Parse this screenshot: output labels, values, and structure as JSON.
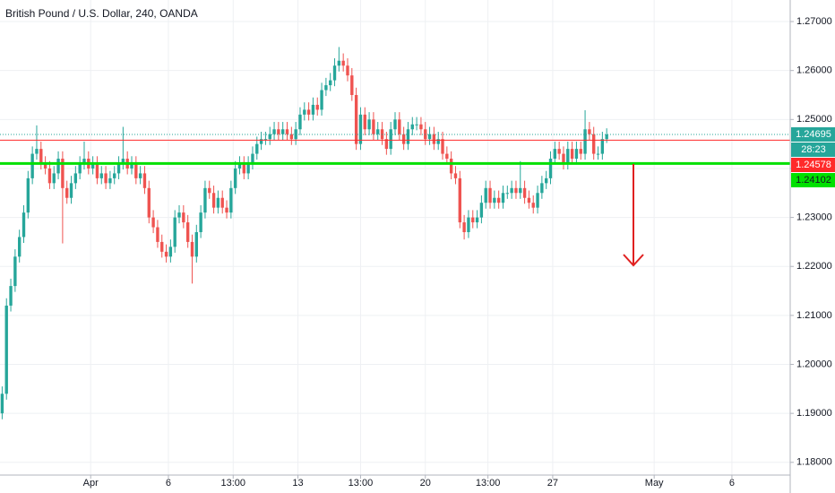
{
  "chart_data": {
    "type": "candlestick",
    "title": "British Pound / U.S. Dollar, 240, OANDA",
    "up_color": "#26a69a",
    "down_color": "#ef5350",
    "open": [
      1.19,
      1.194,
      1.212,
      1.216,
      1.222,
      1.226,
      1.231,
      1.238,
      1.243,
      1.244,
      1.241,
      1.24,
      1.237,
      1.239,
      1.242,
      1.236,
      1.234,
      1.237,
      1.239,
      1.241,
      1.242,
      1.24,
      1.241,
      1.238,
      1.239,
      1.237,
      1.238,
      1.239,
      1.241,
      1.242,
      1.24,
      1.241,
      1.238,
      1.239,
      1.236,
      1.23,
      1.228,
      1.225,
      1.223,
      1.222,
      1.224,
      1.23,
      1.231,
      1.229,
      1.225,
      1.222,
      1.227,
      1.231,
      1.236,
      1.235,
      1.232,
      1.234,
      1.232,
      1.231,
      1.236,
      1.24,
      1.241,
      1.239,
      1.241,
      1.243,
      1.245,
      1.246,
      1.246,
      1.247,
      1.248,
      1.247,
      1.248,
      1.247,
      1.246,
      1.248,
      1.251,
      1.252,
      1.251,
      1.253,
      1.252,
      1.256,
      1.257,
      1.258,
      1.261,
      1.262,
      1.261,
      1.259,
      1.255,
      1.245,
      1.251,
      1.248,
      1.25,
      1.247,
      1.248,
      1.246,
      1.244,
      1.248,
      1.25,
      1.247,
      1.245,
      1.248,
      1.249,
      1.249,
      1.248,
      1.246,
      1.247,
      1.245,
      1.246,
      1.243,
      1.242,
      1.239,
      1.238,
      1.229,
      1.227,
      1.23,
      1.229,
      1.23,
      1.233,
      1.236,
      1.233,
      1.234,
      1.233,
      1.235,
      1.235,
      1.236,
      1.235,
      1.236,
      1.234,
      1.233,
      1.232,
      1.235,
      1.237,
      1.238,
      1.242,
      1.244,
      1.243,
      1.241,
      1.244,
      1.242,
      1.244,
      1.243,
      1.248,
      1.247,
      1.243,
      1.243,
      1.246
    ],
    "high": [
      1.1955,
      1.2135,
      1.2175,
      1.2235,
      1.2275,
      1.2325,
      1.2395,
      1.2445,
      1.2488,
      1.2455,
      1.2425,
      1.2415,
      1.2405,
      1.2435,
      1.2435,
      1.2375,
      1.2385,
      1.2405,
      1.2425,
      1.2455,
      1.2435,
      1.2425,
      1.2425,
      1.2405,
      1.2405,
      1.2395,
      1.2405,
      1.2425,
      1.2485,
      1.2435,
      1.2425,
      1.2425,
      1.2405,
      1.2405,
      1.2375,
      1.2315,
      1.2295,
      1.2265,
      1.2245,
      1.2255,
      1.2315,
      1.2325,
      1.2325,
      1.2305,
      1.2265,
      1.2285,
      1.2325,
      1.2375,
      1.2375,
      1.2365,
      1.2355,
      1.2355,
      1.2335,
      1.2375,
      1.2415,
      1.2425,
      1.2425,
      1.2425,
      1.2445,
      1.2465,
      1.2475,
      1.2475,
      1.2485,
      1.2495,
      1.2495,
      1.2495,
      1.2495,
      1.2485,
      1.2495,
      1.2525,
      1.2535,
      1.2535,
      1.2545,
      1.2545,
      1.2575,
      1.2585,
      1.2595,
      1.2625,
      1.2648,
      1.2635,
      1.2625,
      1.2605,
      1.2565,
      1.2525,
      1.2525,
      1.2515,
      1.2515,
      1.2495,
      1.2495,
      1.2475,
      1.2495,
      1.2515,
      1.2515,
      1.2485,
      1.2495,
      1.2505,
      1.2505,
      1.2505,
      1.2495,
      1.2485,
      1.2485,
      1.2475,
      1.2475,
      1.2445,
      1.2435,
      1.2405,
      1.2395,
      1.2305,
      1.2315,
      1.2315,
      1.2315,
      1.2345,
      1.2375,
      1.2375,
      1.2355,
      1.2355,
      1.2365,
      1.2365,
      1.2375,
      1.2375,
      1.2415,
      1.2375,
      1.2355,
      1.2345,
      1.2365,
      1.2385,
      1.2395,
      1.2435,
      1.2455,
      1.2455,
      1.2445,
      1.2455,
      1.2455,
      1.2455,
      1.2455,
      1.2519,
      1.2495,
      1.2485,
      1.2445,
      1.2475,
      1.2482
    ],
    "low": [
      1.1888,
      1.1928,
      1.2108,
      1.2148,
      1.2208,
      1.2248,
      1.2298,
      1.2368,
      1.2418,
      1.2398,
      1.2388,
      1.2358,
      1.2358,
      1.2378,
      1.2247,
      1.2328,
      1.2328,
      1.2358,
      1.2378,
      1.2398,
      1.2388,
      1.2388,
      1.2368,
      1.2368,
      1.2358,
      1.2358,
      1.2368,
      1.2378,
      1.2398,
      1.2388,
      1.2388,
      1.2368,
      1.2368,
      1.2348,
      1.2288,
      1.2268,
      1.2238,
      1.2218,
      1.2208,
      1.2208,
      1.2228,
      1.2288,
      1.2278,
      1.2238,
      1.2165,
      1.2208,
      1.2258,
      1.2298,
      1.2338,
      1.2308,
      1.2308,
      1.2308,
      1.2298,
      1.2298,
      1.2348,
      1.2388,
      1.2378,
      1.2378,
      1.2398,
      1.2418,
      1.2438,
      1.2448,
      1.2448,
      1.2458,
      1.2458,
      1.2458,
      1.2458,
      1.2448,
      1.2448,
      1.2468,
      1.2498,
      1.2498,
      1.2498,
      1.2508,
      1.2508,
      1.2548,
      1.2558,
      1.2568,
      1.2598,
      1.2598,
      1.2578,
      1.2538,
      1.2438,
      1.2438,
      1.2468,
      1.2468,
      1.2458,
      1.2458,
      1.2448,
      1.2428,
      1.2428,
      1.2468,
      1.2458,
      1.2438,
      1.2438,
      1.2468,
      1.2478,
      1.2468,
      1.2448,
      1.2448,
      1.2438,
      1.2438,
      1.2418,
      1.2408,
      1.2378,
      1.2368,
      1.2278,
      1.2255,
      1.2258,
      1.2278,
      1.2278,
      1.2288,
      1.2318,
      1.2318,
      1.2318,
      1.2318,
      1.2318,
      1.2338,
      1.2338,
      1.2338,
      1.2338,
      1.2328,
      1.2318,
      1.2308,
      1.2308,
      1.2338,
      1.2358,
      1.2368,
      1.2408,
      1.2418,
      1.2398,
      1.2398,
      1.2408,
      1.2408,
      1.2418,
      1.2418,
      1.2458,
      1.2418,
      1.2418,
      1.2418,
      1.2452
    ],
    "close": [
      1.194,
      1.212,
      1.216,
      1.222,
      1.226,
      1.231,
      1.238,
      1.243,
      1.244,
      1.241,
      1.24,
      1.237,
      1.239,
      1.242,
      1.236,
      1.234,
      1.237,
      1.239,
      1.241,
      1.242,
      1.24,
      1.241,
      1.238,
      1.239,
      1.237,
      1.238,
      1.239,
      1.241,
      1.242,
      1.24,
      1.241,
      1.238,
      1.239,
      1.236,
      1.23,
      1.228,
      1.225,
      1.223,
      1.222,
      1.224,
      1.23,
      1.231,
      1.229,
      1.225,
      1.222,
      1.227,
      1.231,
      1.236,
      1.235,
      1.232,
      1.234,
      1.232,
      1.231,
      1.236,
      1.24,
      1.241,
      1.239,
      1.241,
      1.243,
      1.245,
      1.246,
      1.246,
      1.247,
      1.248,
      1.247,
      1.248,
      1.247,
      1.246,
      1.248,
      1.251,
      1.252,
      1.251,
      1.253,
      1.252,
      1.256,
      1.257,
      1.258,
      1.261,
      1.262,
      1.261,
      1.259,
      1.255,
      1.245,
      1.251,
      1.248,
      1.25,
      1.247,
      1.248,
      1.246,
      1.244,
      1.248,
      1.25,
      1.247,
      1.245,
      1.248,
      1.249,
      1.249,
      1.248,
      1.246,
      1.247,
      1.245,
      1.246,
      1.243,
      1.242,
      1.239,
      1.238,
      1.229,
      1.227,
      1.23,
      1.229,
      1.23,
      1.233,
      1.236,
      1.233,
      1.234,
      1.233,
      1.235,
      1.235,
      1.236,
      1.235,
      1.236,
      1.234,
      1.233,
      1.232,
      1.235,
      1.237,
      1.238,
      1.242,
      1.244,
      1.243,
      1.241,
      1.244,
      1.242,
      1.244,
      1.243,
      1.248,
      1.247,
      1.243,
      1.243,
      1.246,
      1.24695
    ],
    "last_color": "#26a69a",
    "countdown": "28:23",
    "hlines": [
      {
        "value": 1.24578,
        "color": "#ff2a2a"
      },
      {
        "value": 1.24102,
        "color": "#00e000"
      }
    ],
    "xlim": [
      -0.5,
      182.5
    ],
    "xticks": [
      {
        "value": 20.5,
        "label": "Apr"
      },
      {
        "value": 38.5,
        "label": "6"
      },
      {
        "value": 53.5,
        "label": "13:00"
      },
      {
        "value": 68.5,
        "label": "13"
      },
      {
        "value": 83,
        "label": "13:00"
      },
      {
        "value": 98,
        "label": "20"
      },
      {
        "value": 112.5,
        "label": "13:00"
      },
      {
        "value": 127.5,
        "label": "27"
      },
      {
        "value": 151,
        "label": "May"
      },
      {
        "value": 169,
        "label": "6"
      }
    ],
    "ylim": [
      1.1774,
      1.2744
    ],
    "yticks": [
      {
        "value": 1.18,
        "label": "1.18000"
      },
      {
        "value": 1.19,
        "label": "1.19000"
      },
      {
        "value": 1.2,
        "label": "1.20000"
      },
      {
        "value": 1.21,
        "label": "1.21000"
      },
      {
        "value": 1.22,
        "label": "1.22000"
      },
      {
        "value": 1.23,
        "label": "1.23000"
      },
      {
        "value": 1.24,
        "label": "1.24000"
      },
      {
        "value": 1.25,
        "label": "1.25000"
      },
      {
        "value": 1.26,
        "label": "1.26000"
      },
      {
        "value": 1.27,
        "label": "1.27000"
      }
    ],
    "grid": true
  }
}
